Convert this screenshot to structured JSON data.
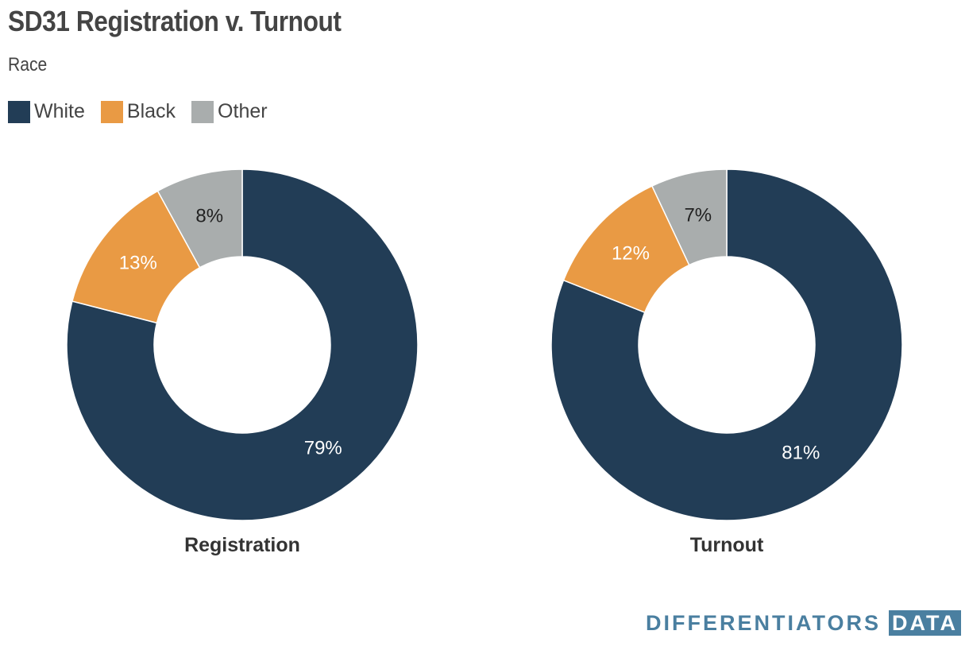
{
  "title": "SD31 Registration v. Turnout",
  "subtitle": "Race",
  "legend": [
    {
      "label": "White",
      "color": "#223d56"
    },
    {
      "label": "Black",
      "color": "#e99a44"
    },
    {
      "label": "Other",
      "color": "#a9adad"
    }
  ],
  "brand": {
    "main": "DIFFERENTIATORS",
    "badge": "DATA"
  },
  "chart_data": [
    {
      "type": "pie",
      "title": "Registration",
      "categories": [
        "White",
        "Black",
        "Other"
      ],
      "values": [
        79,
        13,
        8
      ],
      "labels": [
        "79%",
        "13%",
        "8%"
      ],
      "colors": [
        "#223d56",
        "#e99a44",
        "#a9adad"
      ]
    },
    {
      "type": "pie",
      "title": "Turnout",
      "categories": [
        "White",
        "Black",
        "Other"
      ],
      "values": [
        81,
        12,
        7
      ],
      "labels": [
        "81%",
        "12%",
        "7%"
      ],
      "colors": [
        "#223d56",
        "#e99a44",
        "#a9adad"
      ]
    }
  ]
}
